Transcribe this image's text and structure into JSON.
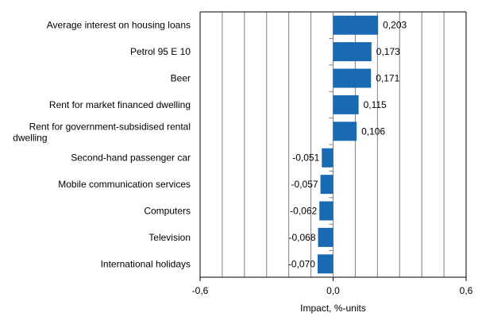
{
  "chart_data": {
    "type": "bar",
    "orientation": "horizontal",
    "categories": [
      "Average interest on housing loans",
      "Petrol 95 E 10",
      "Beer",
      "Rent for market financed dwelling",
      "Rent for government-subsidised rental dwelling",
      "Second-hand passenger car",
      "Mobile communication services",
      "Computers",
      "Television",
      "International holidays"
    ],
    "values": [
      0.203,
      0.173,
      0.171,
      0.115,
      0.106,
      -0.051,
      -0.057,
      -0.062,
      -0.068,
      -0.07
    ],
    "data_labels": [
      "0,203",
      "0,173",
      "0,171",
      "0,115",
      "0,106",
      "-0,051",
      "-0,057",
      "-0,062",
      "-0,068",
      "-0,070"
    ],
    "xlabel": "Impact, %-units",
    "xlim": [
      -0.6,
      0.6
    ],
    "x_ticks": [
      "-0,6",
      "0,0",
      "0,6"
    ],
    "grid_step": 0.1,
    "grid": true,
    "bar_color": "#1a69b3"
  }
}
